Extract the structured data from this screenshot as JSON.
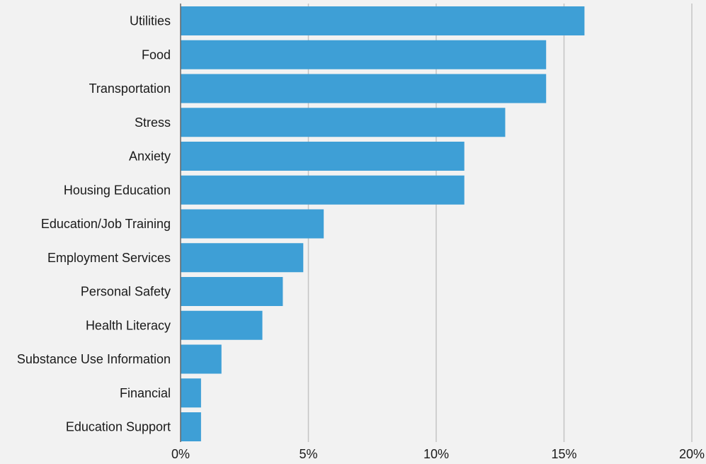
{
  "chart_data": {
    "type": "bar",
    "orientation": "horizontal",
    "title": "",
    "xlabel": "",
    "ylabel": "",
    "categories": [
      "Utilities",
      "Food",
      "Transportation",
      "Stress",
      "Anxiety",
      "Housing Education",
      "Education/Job Training",
      "Employment Services",
      "Personal Safety",
      "Health Literacy",
      "Substance Use Information",
      "Financial",
      "Education Support"
    ],
    "values": [
      15.8,
      14.3,
      14.3,
      12.7,
      11.1,
      11.1,
      5.6,
      4.8,
      4.0,
      3.2,
      1.6,
      0.8,
      0.8
    ],
    "value_unit": "%",
    "xlim": [
      0,
      20
    ],
    "x_ticks": [
      0,
      5,
      10,
      15,
      20
    ],
    "x_tick_labels": [
      "0%",
      "5%",
      "10%",
      "15%",
      "20%"
    ],
    "grid": true,
    "bar_color": "#3e9fd6",
    "background_color": "#f2f2f2"
  }
}
